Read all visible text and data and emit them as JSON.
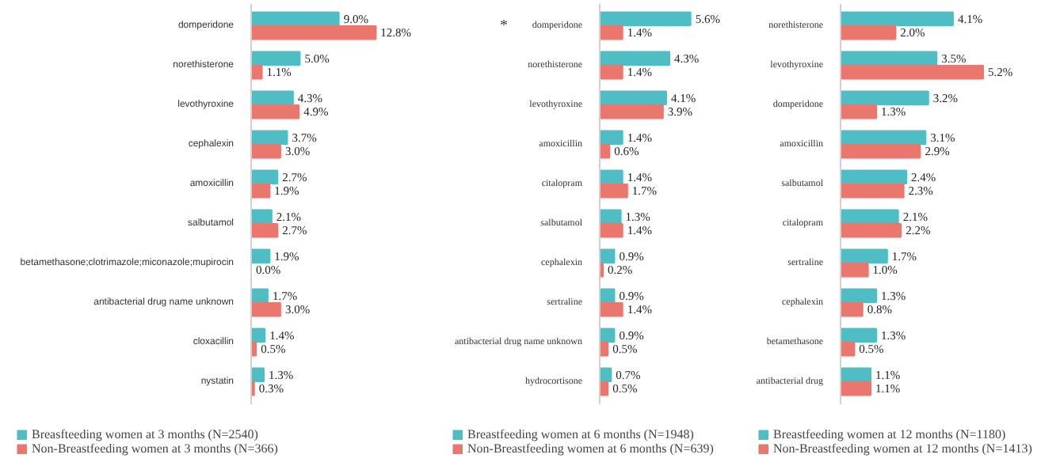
{
  "chart_data": [
    {
      "type": "bar",
      "orientation": "horizontal",
      "legend": "bottom",
      "grid": false,
      "categories": [
        "domperidone",
        "norethisterone",
        "levothyroxine",
        "cephalexin",
        "amoxicillin",
        "salbutamol",
        "betamethasone;clotrimazole;miconazole;mupirocin",
        "antibacterial drug name unknown",
        "cloxacillin",
        "nystatin"
      ],
      "series": [
        {
          "name": "Breasfteeding women at 3 months (N=2540)",
          "color": "#4fbec4",
          "values": [
            9.0,
            5.0,
            4.3,
            3.7,
            2.7,
            2.1,
            1.9,
            1.7,
            1.4,
            1.3
          ],
          "value_labels": [
            "9.0%",
            "5.0%",
            "4.3%",
            "3.7%",
            "2.7%",
            "2.1%",
            "1.9%",
            "1.7%",
            "1.4%",
            "1.3%"
          ]
        },
        {
          "name": "Non-Breastfeeding women at 3 months (N=366)",
          "color": "#e9776e",
          "values": [
            12.8,
            1.1,
            4.9,
            3.0,
            1.9,
            2.7,
            0.0,
            3.0,
            0.5,
            0.3
          ],
          "value_labels": [
            "12.8%",
            "1.1%",
            "4.9%",
            "3.0%",
            "1.9%",
            "2.7%",
            "0.0%",
            "3.0%",
            "0.5%",
            "0.3%"
          ]
        }
      ]
    },
    {
      "type": "bar",
      "orientation": "horizontal",
      "legend": "bottom",
      "grid": false,
      "annotations": [
        "*"
      ],
      "categories": [
        "domperidone",
        "norethisterone",
        "levothyroxine",
        "amoxicillin",
        "citalopram",
        "salbutamol",
        "cephalexin",
        "sertraline",
        "antibacterial drug name unknown",
        "hydrocortisone"
      ],
      "series": [
        {
          "name": "Breastfeeding women at 6 months (N=1948)",
          "color": "#4fbec4",
          "values": [
            5.6,
            4.3,
            4.1,
            1.4,
            1.4,
            1.3,
            0.9,
            0.9,
            0.9,
            0.7
          ],
          "value_labels": [
            "5.6%",
            "4.3%",
            "4.1%",
            "1.4%",
            "1.4%",
            "1.3%",
            "0.9%",
            "0.9%",
            "0.9%",
            "0.7%"
          ]
        },
        {
          "name": "Non-Breastfeeding women at 6 months (N=639)",
          "color": "#e9776e",
          "values": [
            1.4,
            1.4,
            3.9,
            0.6,
            1.7,
            1.4,
            0.2,
            1.4,
            0.5,
            0.5
          ],
          "value_labels": [
            "1.4%",
            "1.4%",
            "3.9%",
            "0.6%",
            "1.7%",
            "1.4%",
            "0.2%",
            "1.4%",
            "0.5%",
            "0.5%"
          ]
        }
      ]
    },
    {
      "type": "bar",
      "orientation": "horizontal",
      "legend": "bottom",
      "grid": false,
      "categories": [
        "norethisterone",
        "levothyroxine",
        "domperidone",
        "amoxicillin",
        "salbutamol",
        "citalopram",
        "sertraline",
        "cephalexin",
        "betamethasone",
        "antibacterial drug"
      ],
      "series": [
        {
          "name": "Breastfeeding women at 12 months (N=1180)",
          "color": "#4fbec4",
          "values": [
            4.1,
            3.5,
            3.2,
            3.1,
            2.4,
            2.1,
            1.7,
            1.3,
            1.3,
            1.1
          ],
          "value_labels": [
            "4.1%",
            "3.5%",
            "3.2%",
            "3.1%",
            "2.4%",
            "2.1%",
            "1.7%",
            "1.3%",
            "1.3%",
            "1.1%"
          ]
        },
        {
          "name": "Non-Breastfeeding women at 12 months (N=1413)",
          "color": "#e9776e",
          "values": [
            2.0,
            5.2,
            1.3,
            2.9,
            2.3,
            2.2,
            1.0,
            0.8,
            0.5,
            1.1
          ],
          "value_labels": [
            "2.0%",
            "5.2%",
            "1.3%",
            "2.9%",
            "2.3%",
            "2.2%",
            "1.0%",
            "0.8%",
            "0.5%",
            "1.1%"
          ]
        }
      ]
    }
  ]
}
